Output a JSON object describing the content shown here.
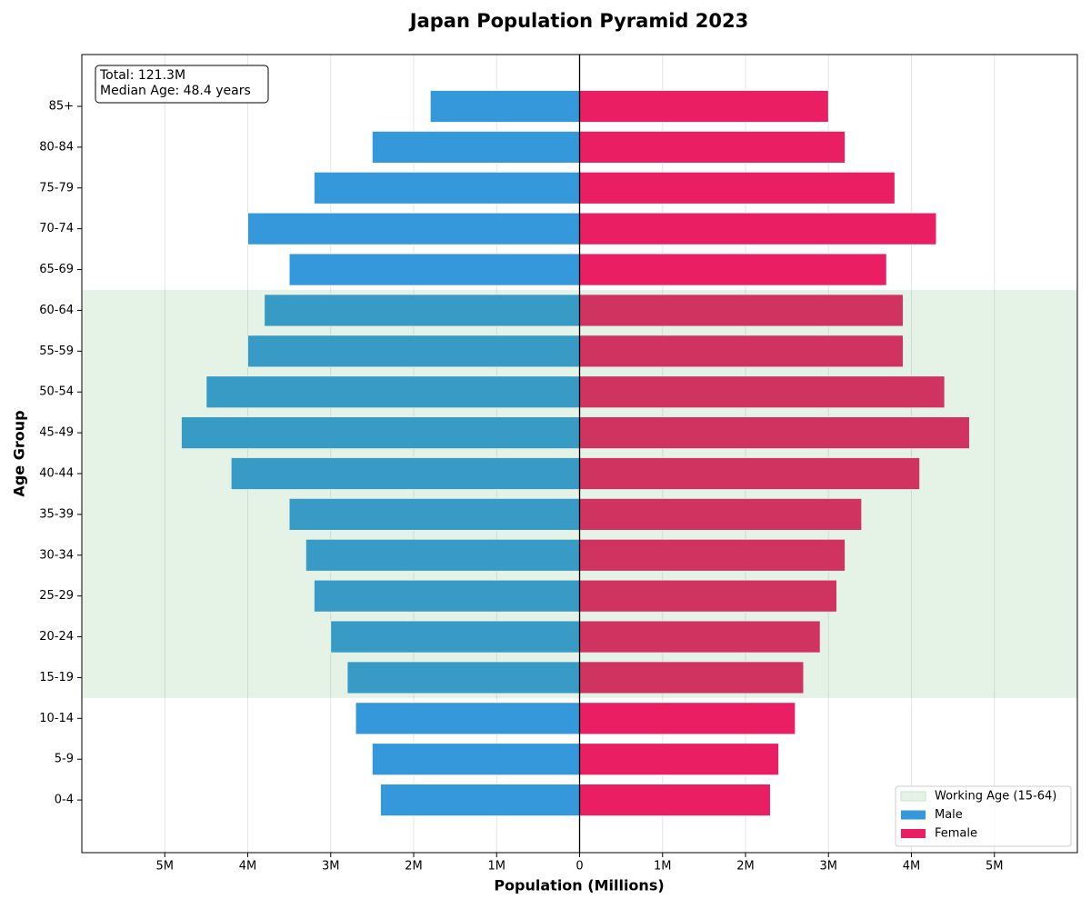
{
  "chart_data": {
    "type": "bar",
    "horizontal": true,
    "title": "Japan Population Pyramid 2023",
    "x_label": "Population (Millions)",
    "y_label": "Age Group",
    "categories": [
      "0-4",
      "5-9",
      "10-14",
      "15-19",
      "20-24",
      "25-29",
      "30-34",
      "35-39",
      "40-44",
      "45-49",
      "50-54",
      "55-59",
      "60-64",
      "65-69",
      "70-74",
      "75-79",
      "80-84",
      "85+"
    ],
    "series": [
      {
        "name": "Male",
        "color": "#3498db",
        "values": [
          -2.4,
          -2.5,
          -2.7,
          -2.8,
          -3.0,
          -3.2,
          -3.3,
          -3.5,
          -4.2,
          -4.8,
          -4.5,
          -4.0,
          -3.8,
          -3.5,
          -4.0,
          -3.2,
          -2.5,
          -1.8
        ]
      },
      {
        "name": "Female",
        "color": "#e91e63",
        "values": [
          2.3,
          2.4,
          2.6,
          2.7,
          2.9,
          3.1,
          3.2,
          3.4,
          4.1,
          4.7,
          4.4,
          3.9,
          3.9,
          3.7,
          4.3,
          3.8,
          3.2,
          3.0
        ]
      }
    ],
    "span": {
      "label": "Working Age (15-64)",
      "color": "#4caf50",
      "from": "15-19",
      "to": "60-64"
    },
    "xlim": [
      -6,
      6
    ],
    "xticks": [
      {
        "value": -5,
        "label": "5M"
      },
      {
        "value": -4,
        "label": "4M"
      },
      {
        "value": -3,
        "label": "3M"
      },
      {
        "value": -2,
        "label": "2M"
      },
      {
        "value": -1,
        "label": "1M"
      },
      0,
      {
        "value": 1,
        "label": "1M"
      },
      {
        "value": 2,
        "label": "2M"
      },
      {
        "value": 3,
        "label": "3M"
      },
      {
        "value": 4,
        "label": "4M"
      },
      {
        "value": 5,
        "label": "5M"
      }
    ],
    "grid": true,
    "legend_position": "lower right",
    "annotation": [
      "Total: 121.3M",
      "Median Age: 48.4 years"
    ]
  }
}
